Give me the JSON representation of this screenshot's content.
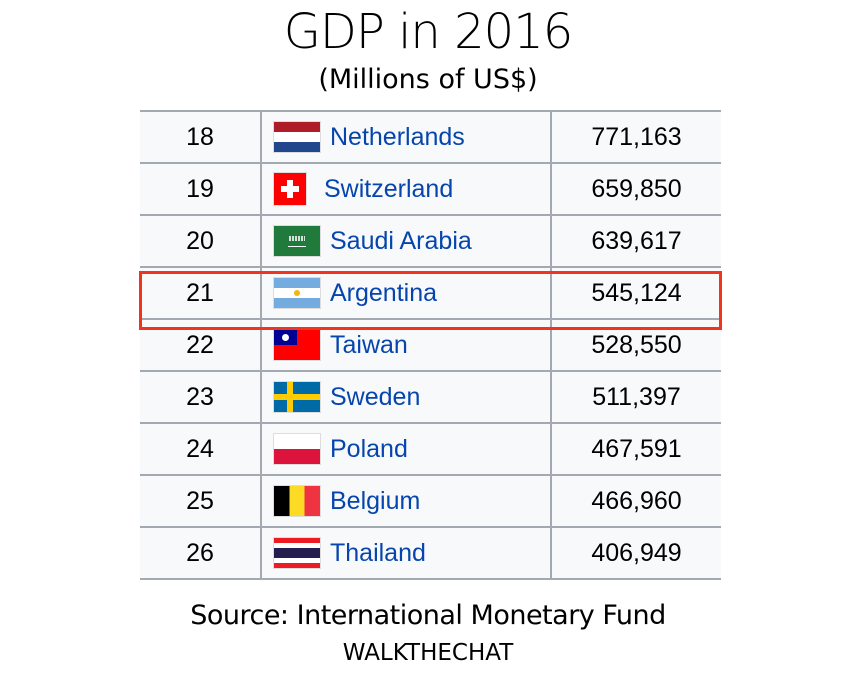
{
  "title": "GDP in 2016",
  "subtitle": "(Millions of US$)",
  "rows": [
    {
      "rank": "18",
      "country": "Netherlands",
      "gdp": "771,163",
      "flag": "nl"
    },
    {
      "rank": "19",
      "country": "Switzerland",
      "gdp": "659,850",
      "flag": "ch"
    },
    {
      "rank": "20",
      "country": "Saudi Arabia",
      "gdp": "639,617",
      "flag": "sa"
    },
    {
      "rank": "21",
      "country": "Argentina",
      "gdp": "545,124",
      "flag": "ar",
      "highlighted": true
    },
    {
      "rank": "22",
      "country": "Taiwan",
      "gdp": "528,550",
      "flag": "tw"
    },
    {
      "rank": "23",
      "country": "Sweden",
      "gdp": "511,397",
      "flag": "se"
    },
    {
      "rank": "24",
      "country": "Poland",
      "gdp": "467,591",
      "flag": "pl"
    },
    {
      "rank": "25",
      "country": "Belgium",
      "gdp": "466,960",
      "flag": "be"
    },
    {
      "rank": "26",
      "country": "Thailand",
      "gdp": "406,949",
      "flag": "th"
    }
  ],
  "highlight_color": "#f0341e",
  "link_color": "#0645ad",
  "source": "Source: International Monetary Fund",
  "brand": "WALKTHECHAT"
}
